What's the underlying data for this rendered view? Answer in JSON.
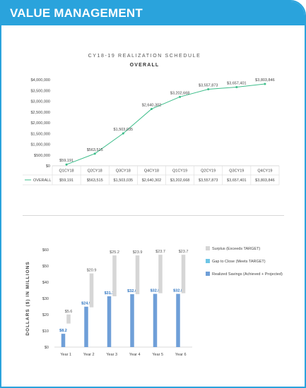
{
  "header": {
    "title": "VALUE MANAGEMENT"
  },
  "chart_data": [
    {
      "type": "line",
      "title": "CY18-19 REALIZATION SCHEDULE",
      "subtitle": "OVERALL",
      "categories": [
        "Q1CY18",
        "Q2CY18",
        "Q3CY18",
        "Q4CY18",
        "Q1CY19",
        "Q2CY19",
        "Q3CY19",
        "Q4CY19"
      ],
      "series": [
        {
          "name": "OVERALL",
          "values": [
            59191,
            563515,
            1503035,
            2640302,
            3202668,
            3557873,
            3657401,
            3803846
          ],
          "labels": [
            "$59,191",
            "$563,515",
            "$1,503,035",
            "$2,640,302",
            "$3,202,668",
            "$3,557,873",
            "$3,657,401",
            "$3,803,846"
          ],
          "table_values": [
            "$59,191",
            "$563,515",
            "$1,503,035",
            "$2,640,302",
            "$3,202,668",
            "$3,557,873",
            "$3,657,401",
            "$3,803,846"
          ],
          "color": "#3dbd8a"
        }
      ],
      "ylim": [
        0,
        4000000
      ],
      "yticks": [
        0,
        500000,
        1000000,
        1500000,
        2000000,
        2500000,
        3000000,
        3500000,
        4000000
      ],
      "ytick_labels": [
        "$0",
        "$500,000",
        "$1,000,000",
        "$1,500,000",
        "$2,000,000",
        "$2,500,000",
        "$3,000,000",
        "$3,500,000",
        "$4,000,000"
      ],
      "grid": false
    },
    {
      "type": "bar",
      "ylabel": "DOLLARS ($) IN MILLIONS",
      "categories": [
        "Year 1",
        "Year 2",
        "Year 3",
        "Year 4",
        "Year 5",
        "Year 6"
      ],
      "series": [
        {
          "name": "Realized Savings (Achieved + Projected)",
          "color": "#6f9fd8",
          "values": [
            8.2,
            24.9,
            31.3,
            32.6,
            32.8,
            32.8
          ],
          "labels": [
            "$8.2",
            "$24.9",
            "$31.3",
            "$32.6",
            "$32.8",
            "$32.8"
          ]
        },
        {
          "name": "Gap to Close (Meets TARGET)",
          "color": "#6ec6e6",
          "values": [
            0,
            0,
            0,
            0,
            0,
            0
          ]
        },
        {
          "name": "Surplus (Exceeds TARGET)",
          "color": "#d6d6d6",
          "base": [
            14.5,
            24.5,
            31.3,
            32.6,
            33.2,
            33.2
          ],
          "values": [
            5.6,
            20.9,
            25.2,
            23.9,
            23.7,
            23.7
          ],
          "labels": [
            "$5.6",
            "$20.9",
            "$25.2",
            "$23.9",
            "$23.7",
            "$23.7"
          ]
        }
      ],
      "ylim": [
        0,
        60
      ],
      "yticks": [
        0,
        10,
        20,
        30,
        40,
        50,
        60
      ],
      "ytick_labels": [
        "$0",
        "$10",
        "$20",
        "$30",
        "$40",
        "$50",
        "$60"
      ],
      "legend_position": "right",
      "legend_order": [
        "Surplus (Exceeds TARGET)",
        "Gap to Close (Meets TARGET)",
        "Realized Savings (Achieved + Projected)"
      ]
    }
  ]
}
